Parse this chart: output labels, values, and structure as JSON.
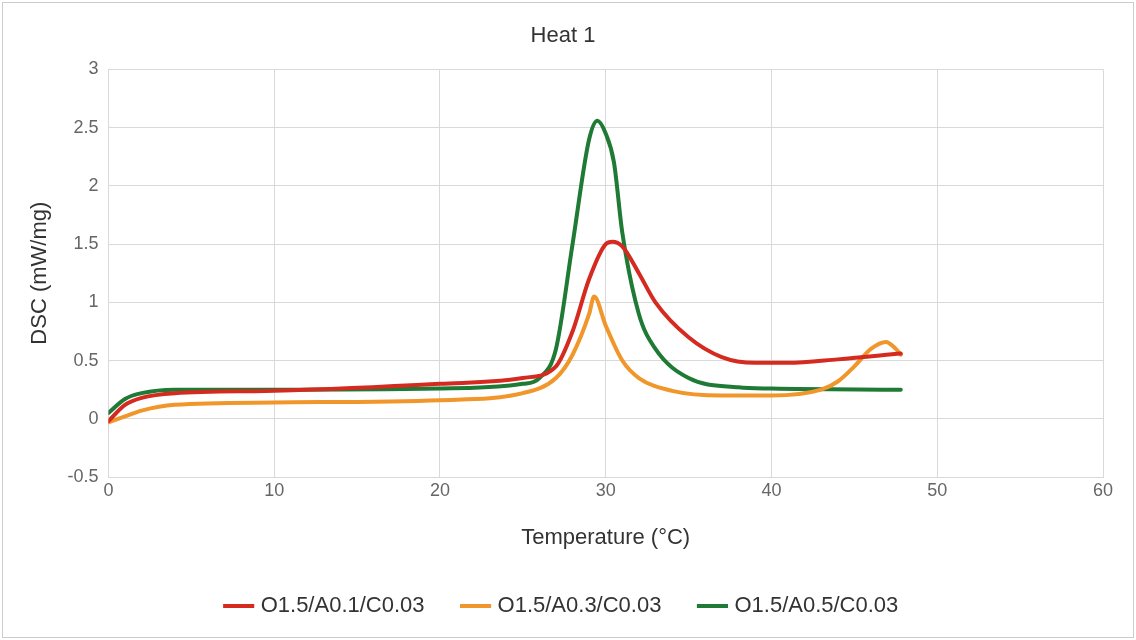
{
  "chart_data": {
    "type": "line",
    "title": "Heat 1",
    "xlabel": "Temperature (°C)",
    "ylabel": "DSC (mW/mg)",
    "xlim": [
      0,
      60
    ],
    "xticks": [
      0,
      10,
      20,
      30,
      40,
      50,
      60
    ],
    "ylim": [
      -0.5,
      3
    ],
    "yticks": [
      -0.5,
      0,
      0.5,
      1,
      1.5,
      2,
      2.5,
      3
    ],
    "grid": true,
    "legend": "bottom",
    "marker": "none",
    "line_style": "solid",
    "series": [
      {
        "name": "O1.5/A0.1/C0.03",
        "color": "#d42a1f",
        "x": [
          0,
          1,
          2,
          4,
          10,
          20,
          25,
          27,
          28,
          29,
          30,
          30.4,
          31,
          32,
          33,
          35,
          37,
          39,
          41,
          44,
          47.8
        ],
        "values": [
          -0.02,
          0.12,
          0.18,
          0.22,
          0.24,
          0.3,
          0.35,
          0.45,
          0.75,
          1.2,
          1.5,
          1.52,
          1.48,
          1.25,
          1.0,
          0.7,
          0.53,
          0.48,
          0.48,
          0.51,
          0.56
        ]
      },
      {
        "name": "O1.5/A0.3/C0.03",
        "color": "#f0962a",
        "x": [
          0,
          1,
          2,
          4,
          10,
          20,
          25,
          27,
          28,
          29,
          29.3,
          30,
          31,
          32,
          34,
          37,
          40,
          43,
          44,
          45,
          46,
          46.9,
          47.5,
          47.8
        ],
        "values": [
          -0.03,
          0.02,
          0.07,
          0.12,
          0.14,
          0.16,
          0.22,
          0.35,
          0.55,
          0.9,
          1.05,
          0.8,
          0.5,
          0.35,
          0.24,
          0.2,
          0.2,
          0.25,
          0.32,
          0.45,
          0.6,
          0.66,
          0.6,
          0.55
        ]
      },
      {
        "name": "O1.5/A0.5/C0.03",
        "color": "#1e7a34",
        "x": [
          0,
          1,
          2,
          4,
          10,
          20,
          25,
          26,
          27,
          28,
          29,
          29.5,
          30,
          30.5,
          31,
          32,
          33,
          35,
          38,
          40,
          47.8
        ],
        "values": [
          0.05,
          0.17,
          0.22,
          0.25,
          0.25,
          0.26,
          0.3,
          0.35,
          0.6,
          1.5,
          2.4,
          2.56,
          2.45,
          2.2,
          1.6,
          0.9,
          0.6,
          0.35,
          0.27,
          0.26,
          0.25
        ]
      }
    ]
  }
}
